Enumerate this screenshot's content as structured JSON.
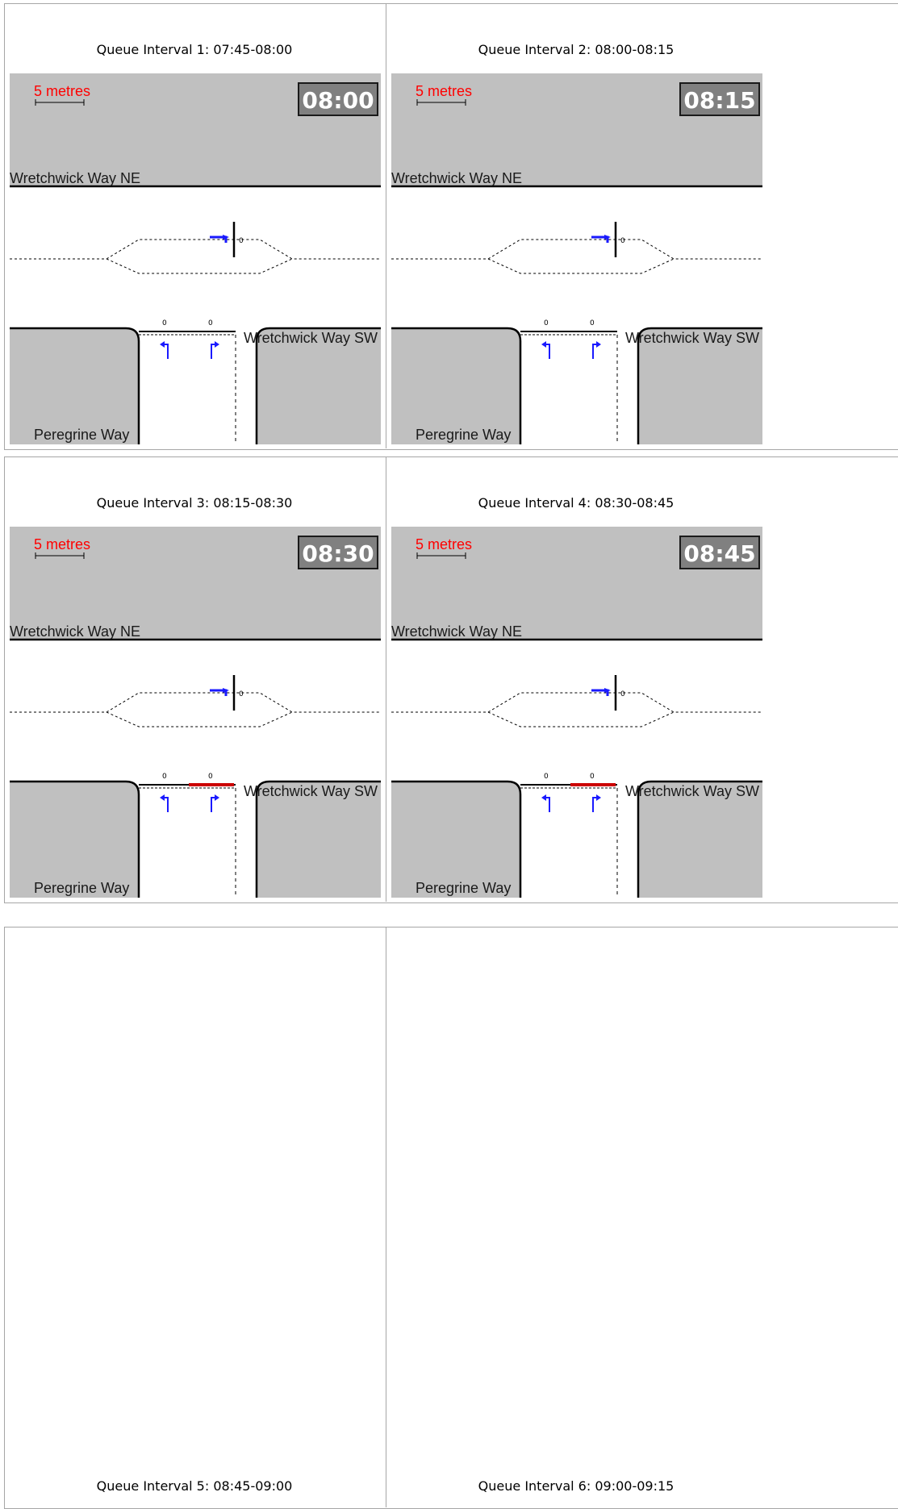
{
  "intervals": [
    {
      "caption": "Queue Interval 1: 07:45-08:00",
      "clock": "08:00",
      "queue_shown": false
    },
    {
      "caption": "Queue Interval 2: 08:00-08:15",
      "clock": "08:15",
      "queue_shown": false
    },
    {
      "caption": "Queue Interval 3: 08:15-08:30",
      "clock": "08:30",
      "queue_shown": true
    },
    {
      "caption": "Queue Interval 4: 08:30-08:45",
      "clock": "08:45",
      "queue_shown": true
    },
    {
      "caption": "Queue Interval 5: 08:45-09:00"
    },
    {
      "caption": "Queue Interval 6: 09:00-09:15"
    }
  ],
  "diagram_labels": {
    "scale": "5 metres",
    "road_ne": "Wretchwick Way NE",
    "road_sw": "Wretchwick Way SW",
    "road_side": "Peregrine Way",
    "queue_value": "0"
  },
  "colors": {
    "ground": "#c0c0c0",
    "clock_bg": "#808080",
    "arrow": "#1a1aff",
    "queue": "#cc0000",
    "scale_text": "#ff0000"
  }
}
